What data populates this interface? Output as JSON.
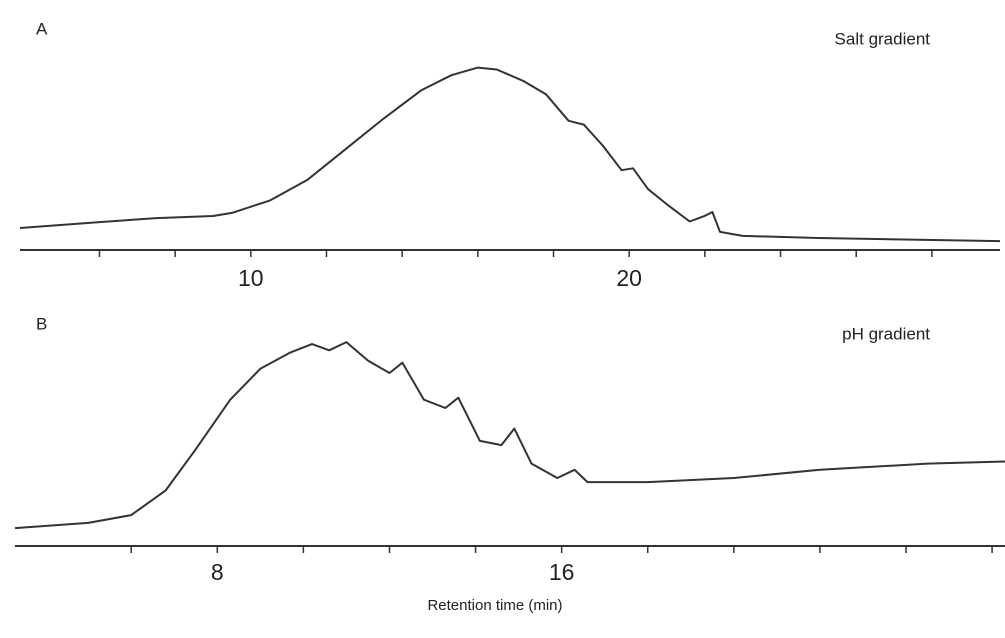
{
  "chart_data": [
    {
      "type": "line",
      "panel": "A",
      "title": "Salt gradient",
      "color": "#333333",
      "xlim": [
        3.9,
        29.8
      ],
      "ylim": [
        0,
        100
      ],
      "xticks": [
        10,
        20
      ],
      "xminor_ticks": [
        6,
        8,
        10,
        12,
        14,
        16,
        18,
        20,
        22,
        24,
        26,
        28
      ],
      "x": [
        3.9,
        6,
        7.5,
        9,
        9.5,
        10.5,
        11.5,
        12.5,
        13.5,
        14.5,
        15.3,
        16,
        16.5,
        17.2,
        17.8,
        18.4,
        18.8,
        19.3,
        19.8,
        20.1,
        20.5,
        21.0,
        21.6,
        22.0,
        22.2,
        22.4,
        23,
        25,
        29.8
      ],
      "values": [
        11.6,
        14.7,
        16.8,
        17.9,
        19.5,
        26,
        37,
        53,
        69,
        84,
        92,
        96,
        95,
        89,
        82,
        68,
        66,
        55,
        42,
        43,
        32,
        24,
        15,
        18,
        20,
        9.5,
        7.4,
        6.3,
        4.7
      ]
    },
    {
      "type": "line",
      "panel": "B",
      "title": "pH gradient",
      "color": "#333333",
      "xlabel": "Retention time (min)",
      "xlim": [
        3.3,
        26.3
      ],
      "ylim": [
        0,
        100
      ],
      "xticks": [
        8,
        16
      ],
      "xminor_ticks": [
        6,
        8,
        10,
        12,
        14,
        16,
        18,
        20,
        22,
        24,
        26
      ],
      "x": [
        3.3,
        5,
        6,
        6.8,
        7.5,
        8.3,
        9,
        9.7,
        10.2,
        10.6,
        11.0,
        11.5,
        12.0,
        12.3,
        12.8,
        13.3,
        13.6,
        14.1,
        14.6,
        14.9,
        15.3,
        15.9,
        16.3,
        16.6,
        18,
        20,
        22,
        24.5,
        26.3
      ],
      "values": [
        8.7,
        11.2,
        15,
        27,
        47,
        71,
        86,
        94,
        98,
        95,
        99,
        90,
        84,
        89,
        71,
        67,
        72,
        51,
        49,
        57,
        40,
        33,
        37,
        31,
        31,
        33,
        37,
        40,
        41
      ]
    }
  ]
}
